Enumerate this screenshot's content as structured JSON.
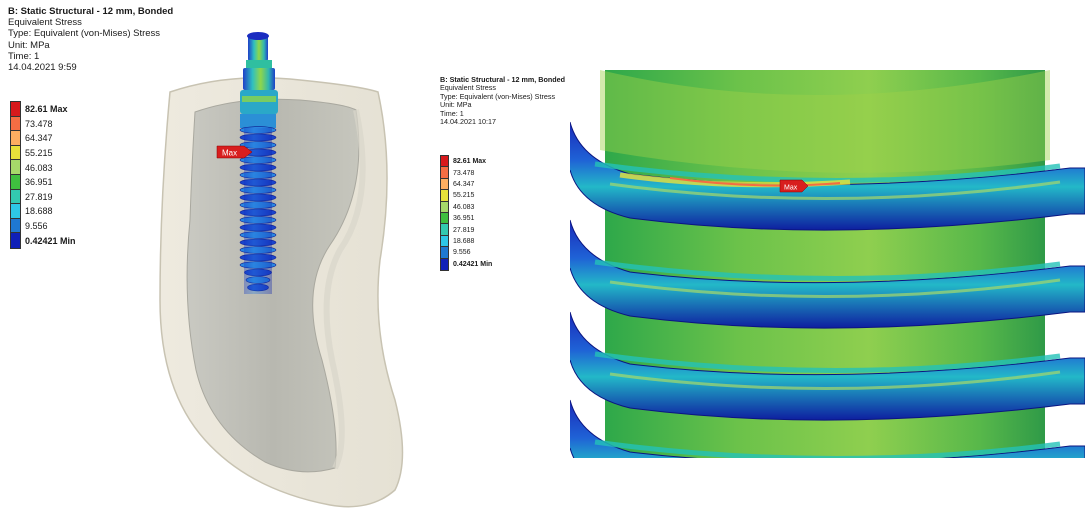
{
  "left": {
    "title": "B: Static Structural - 12 mm, Bonded",
    "result": "Equivalent Stress",
    "type": "Type: Equivalent (von-Mises) Stress",
    "unit": "Unit: MPa",
    "time": "Time: 1",
    "timestamp": "14.04.2021 9:59",
    "max_tag": "Max"
  },
  "right": {
    "title": "B: Static Structural - 12 mm, Bonded",
    "result": "Equivalent Stress",
    "type": "Type: Equivalent (von-Mises) Stress",
    "unit": "Unit: MPa",
    "time": "Time: 1",
    "timestamp": "14.04.2021 10:17",
    "max_tag": "Max"
  },
  "legend": [
    {
      "label": "82.61 Max",
      "color": "#d7191c",
      "bold": true
    },
    {
      "label": "73.478",
      "color": "#f46d43",
      "bold": false
    },
    {
      "label": "64.347",
      "color": "#fdae61",
      "bold": false
    },
    {
      "label": "55.215",
      "color": "#e8e23a",
      "bold": false
    },
    {
      "label": "46.083",
      "color": "#a6d96a",
      "bold": false
    },
    {
      "label": "36.951",
      "color": "#3fbf3f",
      "bold": false
    },
    {
      "label": "27.819",
      "color": "#33c9b0",
      "bold": false
    },
    {
      "label": "18.688",
      "color": "#2ec7e6",
      "bold": false
    },
    {
      "label": "9.556",
      "color": "#1f78d1",
      "bold": false
    },
    {
      "label": "0.42421 Min",
      "color": "#1020b8",
      "bold": true
    }
  ]
}
